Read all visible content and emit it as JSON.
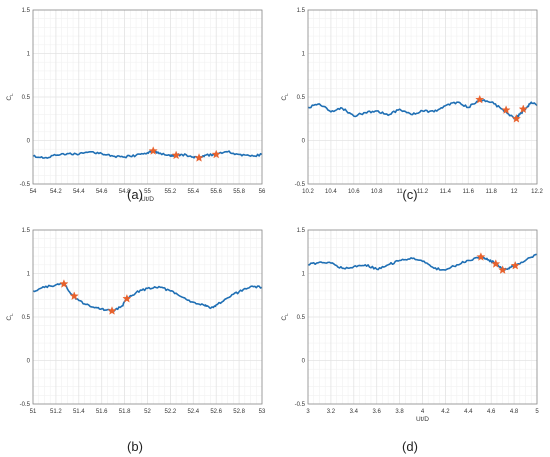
{
  "panel_labels": [
    "(a)",
    "(b)",
    "(c)",
    "(d)"
  ],
  "colors": {
    "line": "#1f6fb4",
    "marker": "#e8612c",
    "grid": "#e3e3e3",
    "axis": "#8a8a8a",
    "text": "#333333"
  },
  "chart_data": [
    {
      "type": "line",
      "panel": "(a)",
      "xlabel": "Ut/D",
      "ylabel": "C_L",
      "xlim": [
        54,
        56
      ],
      "ylim": [
        -0.5,
        1.5
      ],
      "xticks": [
        54,
        54.2,
        54.4,
        54.6,
        54.8,
        55,
        55.2,
        55.4,
        55.6,
        55.8,
        56
      ],
      "xtick_labels": [
        "54",
        "54.2",
        "54.4",
        "54.6",
        "54.8",
        "55",
        "55.2",
        "55.4",
        "55.6",
        "55.8",
        "56"
      ],
      "yticks": [
        -0.5,
        0,
        0.5,
        1,
        1.5
      ],
      "ytick_labels": [
        "-0.5",
        "0",
        "0.5",
        "1",
        "1.5"
      ],
      "grid": true,
      "series": [
        {
          "x": [
            54,
            54.1,
            54.2,
            54.3,
            54.4,
            54.5,
            54.6,
            54.7,
            54.8,
            54.9,
            55,
            55.05,
            55.1,
            55.2,
            55.25,
            55.3,
            55.4,
            55.45,
            55.5,
            55.6,
            55.7,
            55.8,
            55.9,
            56
          ],
          "y": [
            -0.18,
            -0.2,
            -0.17,
            -0.15,
            -0.16,
            -0.13,
            -0.15,
            -0.18,
            -0.19,
            -0.17,
            -0.14,
            -0.12,
            -0.15,
            -0.18,
            -0.17,
            -0.16,
            -0.19,
            -0.2,
            -0.17,
            -0.16,
            -0.13,
            -0.16,
            -0.18,
            -0.16
          ]
        }
      ],
      "markers": [
        {
          "x": 55.05,
          "y": -0.12
        },
        {
          "x": 55.25,
          "y": -0.17
        },
        {
          "x": 55.45,
          "y": -0.2
        },
        {
          "x": 55.6,
          "y": -0.16
        }
      ]
    },
    {
      "type": "line",
      "panel": "(b)",
      "xlabel": "",
      "ylabel": "C_L",
      "xlim": [
        51,
        53
      ],
      "ylim": [
        -0.5,
        1.5
      ],
      "xticks": [
        51,
        51.2,
        51.4,
        51.6,
        51.8,
        52,
        52.2,
        52.4,
        52.6,
        52.8,
        53
      ],
      "xtick_labels": [
        "51",
        "51.2",
        "51.4",
        "51.6",
        "51.8",
        "52",
        "52.2",
        "52.4",
        "52.6",
        "52.8",
        "53"
      ],
      "yticks": [
        -0.5,
        0,
        0.5,
        1,
        1.5
      ],
      "ytick_labels": [
        "-0.5",
        "0",
        "0.5",
        "1",
        "1.5"
      ],
      "grid": true,
      "series": [
        {
          "x": [
            51,
            51.1,
            51.2,
            51.27,
            51.35,
            51.45,
            51.55,
            51.63,
            51.7,
            51.78,
            51.82,
            51.9,
            52,
            52.1,
            52.2,
            52.3,
            52.4,
            52.5,
            52.55,
            52.6,
            52.7,
            52.8,
            52.9,
            53
          ],
          "y": [
            0.8,
            0.84,
            0.87,
            0.88,
            0.74,
            0.65,
            0.61,
            0.58,
            0.57,
            0.63,
            0.71,
            0.78,
            0.83,
            0.85,
            0.8,
            0.73,
            0.67,
            0.63,
            0.6,
            0.64,
            0.72,
            0.79,
            0.85,
            0.84
          ]
        }
      ],
      "markers": [
        {
          "x": 51.27,
          "y": 0.88
        },
        {
          "x": 51.36,
          "y": 0.74
        },
        {
          "x": 51.69,
          "y": 0.57
        },
        {
          "x": 51.82,
          "y": 0.71
        }
      ]
    },
    {
      "type": "line",
      "panel": "(c)",
      "xlabel": "",
      "ylabel": "C_L",
      "xlim": [
        10.2,
        12.2
      ],
      "ylim": [
        -0.5,
        1.5
      ],
      "xticks": [
        10.2,
        10.4,
        10.6,
        10.8,
        11,
        11.2,
        11.4,
        11.6,
        11.8,
        12,
        12.2
      ],
      "xtick_labels": [
        "10.2",
        "10.4",
        "10.6",
        "10.8",
        "11",
        "11.2",
        "11.4",
        "11.6",
        "11.8",
        "12",
        "12.2"
      ],
      "yticks": [
        -0.5,
        0,
        0.5,
        1,
        1.5
      ],
      "ytick_labels": [
        "-0.5",
        "0",
        "0.5",
        "1",
        "1.5"
      ],
      "grid": true,
      "series": [
        {
          "x": [
            10.2,
            10.3,
            10.4,
            10.5,
            10.6,
            10.7,
            10.8,
            10.9,
            11,
            11.1,
            11.2,
            11.3,
            11.4,
            11.5,
            11.6,
            11.7,
            11.8,
            11.9,
            12,
            12.05,
            12.1,
            12.15,
            12.2
          ],
          "y": [
            0.38,
            0.42,
            0.33,
            0.37,
            0.28,
            0.32,
            0.34,
            0.29,
            0.36,
            0.3,
            0.34,
            0.33,
            0.4,
            0.44,
            0.38,
            0.47,
            0.44,
            0.36,
            0.25,
            0.3,
            0.36,
            0.44,
            0.4
          ]
        }
      ],
      "markers": [
        {
          "x": 11.7,
          "y": 0.47
        },
        {
          "x": 11.93,
          "y": 0.35
        },
        {
          "x": 12.02,
          "y": 0.25
        },
        {
          "x": 12.08,
          "y": 0.36
        }
      ]
    },
    {
      "type": "line",
      "panel": "(d)",
      "xlabel": "Ut/D",
      "ylabel": "C_L",
      "xlim": [
        3,
        5
      ],
      "ylim": [
        -0.5,
        1.5
      ],
      "xticks": [
        3,
        3.2,
        3.4,
        3.6,
        3.8,
        4,
        4.2,
        4.4,
        4.6,
        4.8,
        5
      ],
      "xtick_labels": [
        "3",
        "3.2",
        "3.4",
        "3.6",
        "3.8",
        "4",
        "4.2",
        "4.4",
        "4.6",
        "4.8",
        "5"
      ],
      "yticks": [
        -0.5,
        0,
        0.5,
        1,
        1.5
      ],
      "ytick_labels": [
        "-0.5",
        "0",
        "0.5",
        "1",
        "1.5"
      ],
      "grid": true,
      "series": [
        {
          "x": [
            3,
            3.1,
            3.2,
            3.3,
            3.4,
            3.5,
            3.6,
            3.7,
            3.8,
            3.9,
            4,
            4.1,
            4.2,
            4.3,
            4.4,
            4.5,
            4.55,
            4.6,
            4.65,
            4.7,
            4.75,
            4.8,
            4.9,
            5
          ],
          "y": [
            1.1,
            1.13,
            1.12,
            1.06,
            1.08,
            1.1,
            1.05,
            1.1,
            1.15,
            1.18,
            1.14,
            1.06,
            1.04,
            1.1,
            1.15,
            1.19,
            1.17,
            1.14,
            1.11,
            1.04,
            1.06,
            1.09,
            1.15,
            1.22
          ]
        }
      ],
      "markers": [
        {
          "x": 4.51,
          "y": 1.19
        },
        {
          "x": 4.64,
          "y": 1.11
        },
        {
          "x": 4.7,
          "y": 1.04
        },
        {
          "x": 4.81,
          "y": 1.09
        }
      ]
    }
  ]
}
